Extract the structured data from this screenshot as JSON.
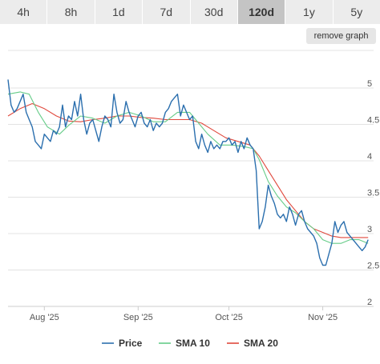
{
  "tabs": [
    {
      "label": "4h",
      "active": false
    },
    {
      "label": "8h",
      "active": false
    },
    {
      "label": "1d",
      "active": false
    },
    {
      "label": "7d",
      "active": false
    },
    {
      "label": "30d",
      "active": false
    },
    {
      "label": "120d",
      "active": true
    },
    {
      "label": "1y",
      "active": false
    },
    {
      "label": "5y",
      "active": false
    }
  ],
  "remove_graph_label": "remove graph",
  "colors": {
    "price": "#2b6fae",
    "sma10": "#66cc88",
    "sma20": "#e0483c",
    "grid": "#e3e3e3",
    "active_tab": "#c4c4c4",
    "tab": "#ececec"
  },
  "chart_data": {
    "type": "line",
    "x_ticks": [
      {
        "label": "Aug '25",
        "day": 12
      },
      {
        "label": "Sep '25",
        "day": 43
      },
      {
        "label": "Oct '25",
        "day": 73
      },
      {
        "label": "Nov '25",
        "day": 104
      }
    ],
    "y_ticks": [
      "2",
      "2.5",
      "3",
      "3.5",
      "4",
      "4.5",
      "5"
    ],
    "ylim": [
      2,
      5.2
    ],
    "xlim": [
      0,
      120
    ],
    "legend_position": "bottom",
    "series": [
      {
        "name": "Price",
        "color_key": "price",
        "points": [
          [
            0,
            5.05
          ],
          [
            1,
            4.7
          ],
          [
            2,
            4.6
          ],
          [
            3,
            4.65
          ],
          [
            4,
            4.75
          ],
          [
            5,
            4.85
          ],
          [
            6,
            4.6
          ],
          [
            7,
            4.5
          ],
          [
            8,
            4.4
          ],
          [
            9,
            4.2
          ],
          [
            10,
            4.15
          ],
          [
            11,
            4.1
          ],
          [
            12,
            4.3
          ],
          [
            13,
            4.25
          ],
          [
            14,
            4.2
          ],
          [
            15,
            4.35
          ],
          [
            16,
            4.3
          ],
          [
            17,
            4.4
          ],
          [
            18,
            4.7
          ],
          [
            19,
            4.4
          ],
          [
            20,
            4.55
          ],
          [
            21,
            4.5
          ],
          [
            22,
            4.75
          ],
          [
            23,
            4.55
          ],
          [
            24,
            4.85
          ],
          [
            25,
            4.5
          ],
          [
            26,
            4.3
          ],
          [
            27,
            4.45
          ],
          [
            28,
            4.5
          ],
          [
            29,
            4.35
          ],
          [
            30,
            4.2
          ],
          [
            31,
            4.4
          ],
          [
            32,
            4.55
          ],
          [
            33,
            4.5
          ],
          [
            34,
            4.4
          ],
          [
            35,
            4.85
          ],
          [
            36,
            4.6
          ],
          [
            37,
            4.45
          ],
          [
            38,
            4.5
          ],
          [
            39,
            4.75
          ],
          [
            40,
            4.6
          ],
          [
            41,
            4.5
          ],
          [
            42,
            4.4
          ],
          [
            43,
            4.55
          ],
          [
            44,
            4.6
          ],
          [
            45,
            4.45
          ],
          [
            46,
            4.4
          ],
          [
            47,
            4.5
          ],
          [
            48,
            4.35
          ],
          [
            49,
            4.45
          ],
          [
            50,
            4.4
          ],
          [
            51,
            4.45
          ],
          [
            52,
            4.6
          ],
          [
            53,
            4.65
          ],
          [
            54,
            4.75
          ],
          [
            55,
            4.8
          ],
          [
            56,
            4.85
          ],
          [
            57,
            4.55
          ],
          [
            58,
            4.7
          ],
          [
            59,
            4.6
          ],
          [
            60,
            4.5
          ],
          [
            61,
            4.55
          ],
          [
            62,
            4.2
          ],
          [
            63,
            4.1
          ],
          [
            64,
            4.3
          ],
          [
            65,
            4.15
          ],
          [
            66,
            4.05
          ],
          [
            67,
            4.2
          ],
          [
            68,
            4.1
          ],
          [
            69,
            4.15
          ],
          [
            70,
            4.1
          ],
          [
            71,
            4.2
          ],
          [
            72,
            4.2
          ],
          [
            73,
            4.25
          ],
          [
            74,
            4.15
          ],
          [
            75,
            4.2
          ],
          [
            76,
            4.05
          ],
          [
            77,
            4.2
          ],
          [
            78,
            4.1
          ],
          [
            79,
            4.25
          ],
          [
            80,
            4.15
          ],
          [
            81,
            4.1
          ],
          [
            82,
            3.8
          ],
          [
            83,
            3.0
          ],
          [
            84,
            3.1
          ],
          [
            85,
            3.3
          ],
          [
            86,
            3.6
          ],
          [
            87,
            3.45
          ],
          [
            88,
            3.35
          ],
          [
            89,
            3.2
          ],
          [
            90,
            3.15
          ],
          [
            91,
            3.2
          ],
          [
            92,
            3.1
          ],
          [
            93,
            3.3
          ],
          [
            94,
            3.2
          ],
          [
            95,
            3.05
          ],
          [
            96,
            3.2
          ],
          [
            97,
            3.25
          ],
          [
            98,
            3.1
          ],
          [
            99,
            3.0
          ],
          [
            100,
            2.95
          ],
          [
            101,
            2.9
          ],
          [
            102,
            2.8
          ],
          [
            103,
            2.6
          ],
          [
            104,
            2.5
          ],
          [
            105,
            2.5
          ],
          [
            106,
            2.65
          ],
          [
            107,
            2.8
          ],
          [
            108,
            3.1
          ],
          [
            109,
            2.95
          ],
          [
            110,
            3.05
          ],
          [
            111,
            3.1
          ],
          [
            112,
            2.95
          ],
          [
            113,
            2.9
          ],
          [
            114,
            2.85
          ],
          [
            115,
            2.8
          ],
          [
            116,
            2.75
          ],
          [
            117,
            2.7
          ],
          [
            118,
            2.75
          ],
          [
            119,
            2.85
          ]
        ]
      },
      {
        "name": "SMA 10",
        "color_key": "sma10",
        "points": [
          [
            0,
            4.85
          ],
          [
            4,
            4.88
          ],
          [
            7,
            4.85
          ],
          [
            10,
            4.6
          ],
          [
            13,
            4.4
          ],
          [
            17,
            4.3
          ],
          [
            20,
            4.42
          ],
          [
            24,
            4.55
          ],
          [
            28,
            4.52
          ],
          [
            32,
            4.45
          ],
          [
            36,
            4.55
          ],
          [
            40,
            4.6
          ],
          [
            44,
            4.55
          ],
          [
            48,
            4.47
          ],
          [
            52,
            4.47
          ],
          [
            56,
            4.6
          ],
          [
            60,
            4.6
          ],
          [
            63,
            4.45
          ],
          [
            66,
            4.3
          ],
          [
            70,
            4.15
          ],
          [
            74,
            4.15
          ],
          [
            78,
            4.13
          ],
          [
            81,
            4.1
          ],
          [
            83,
            3.95
          ],
          [
            86,
            3.65
          ],
          [
            89,
            3.45
          ],
          [
            92,
            3.3
          ],
          [
            95,
            3.22
          ],
          [
            98,
            3.1
          ],
          [
            101,
            3.0
          ],
          [
            104,
            2.85
          ],
          [
            107,
            2.8
          ],
          [
            110,
            2.8
          ],
          [
            113,
            2.85
          ],
          [
            116,
            2.85
          ],
          [
            119,
            2.8
          ]
        ]
      },
      {
        "name": "SMA 20",
        "color_key": "sma20",
        "points": [
          [
            0,
            4.55
          ],
          [
            4,
            4.65
          ],
          [
            8,
            4.72
          ],
          [
            12,
            4.65
          ],
          [
            16,
            4.55
          ],
          [
            20,
            4.48
          ],
          [
            24,
            4.47
          ],
          [
            28,
            4.5
          ],
          [
            32,
            4.52
          ],
          [
            36,
            4.55
          ],
          [
            40,
            4.55
          ],
          [
            44,
            4.53
          ],
          [
            48,
            4.52
          ],
          [
            52,
            4.5
          ],
          [
            56,
            4.5
          ],
          [
            60,
            4.5
          ],
          [
            64,
            4.45
          ],
          [
            68,
            4.35
          ],
          [
            72,
            4.25
          ],
          [
            76,
            4.2
          ],
          [
            80,
            4.15
          ],
          [
            83,
            4.0
          ],
          [
            86,
            3.8
          ],
          [
            89,
            3.6
          ],
          [
            92,
            3.4
          ],
          [
            95,
            3.25
          ],
          [
            98,
            3.1
          ],
          [
            101,
            3.0
          ],
          [
            104,
            2.95
          ],
          [
            107,
            2.9
          ],
          [
            110,
            2.88
          ],
          [
            113,
            2.88
          ],
          [
            116,
            2.88
          ],
          [
            119,
            2.88
          ]
        ]
      }
    ]
  }
}
